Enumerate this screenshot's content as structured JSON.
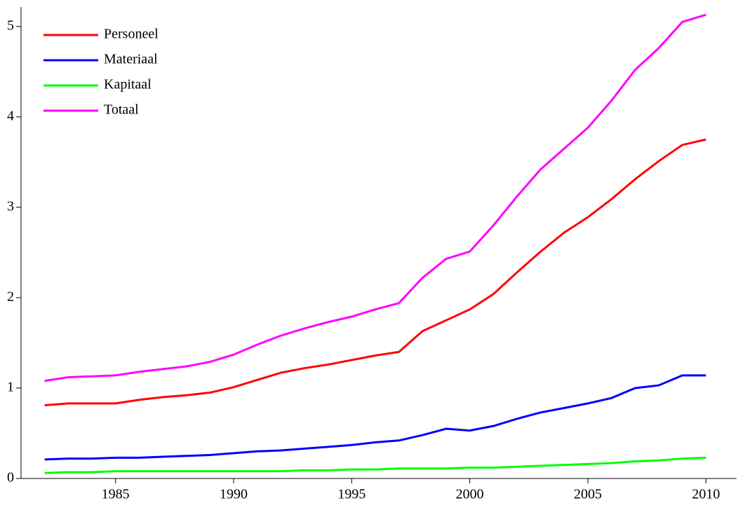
{
  "chart_data": {
    "type": "line",
    "x": [
      1982,
      1983,
      1984,
      1985,
      1986,
      1987,
      1988,
      1989,
      1990,
      1991,
      1992,
      1993,
      1994,
      1995,
      1996,
      1997,
      1998,
      1999,
      2000,
      2001,
      2002,
      2003,
      2004,
      2005,
      2006,
      2007,
      2008,
      2009,
      2010
    ],
    "series": [
      {
        "name": "Personeel",
        "color": "#ff0000",
        "values": [
          0.81,
          0.83,
          0.83,
          0.83,
          0.87,
          0.9,
          0.92,
          0.95,
          1.01,
          1.09,
          1.17,
          1.22,
          1.26,
          1.31,
          1.36,
          1.4,
          1.63,
          1.75,
          1.87,
          2.04,
          2.28,
          2.51,
          2.72,
          2.89,
          3.09,
          3.31,
          3.51,
          3.69,
          3.75
        ]
      },
      {
        "name": "Materiaal",
        "color": "#0000ff",
        "values": [
          0.21,
          0.22,
          0.22,
          0.23,
          0.23,
          0.24,
          0.25,
          0.26,
          0.28,
          0.3,
          0.31,
          0.33,
          0.35,
          0.37,
          0.4,
          0.42,
          0.48,
          0.55,
          0.53,
          0.58,
          0.66,
          0.73,
          0.78,
          0.83,
          0.89,
          1.0,
          1.03,
          1.14,
          1.14
        ]
      },
      {
        "name": "Kapitaal",
        "color": "#00ff00",
        "values": [
          0.06,
          0.07,
          0.07,
          0.08,
          0.08,
          0.08,
          0.08,
          0.08,
          0.08,
          0.08,
          0.08,
          0.09,
          0.09,
          0.1,
          0.1,
          0.11,
          0.11,
          0.11,
          0.12,
          0.12,
          0.13,
          0.14,
          0.15,
          0.16,
          0.17,
          0.19,
          0.2,
          0.22,
          0.23
        ]
      },
      {
        "name": "Totaal",
        "color": "#ff00ff",
        "values": [
          1.08,
          1.12,
          1.13,
          1.14,
          1.18,
          1.21,
          1.24,
          1.29,
          1.37,
          1.48,
          1.58,
          1.66,
          1.73,
          1.79,
          1.87,
          1.94,
          2.22,
          2.43,
          2.51,
          2.8,
          3.12,
          3.42,
          3.65,
          3.88,
          4.18,
          4.52,
          4.76,
          5.05,
          5.13
        ]
      }
    ],
    "xlim": [
      1981,
      2011
    ],
    "xticks": [
      1985,
      1990,
      1995,
      2000,
      2005,
      2010
    ],
    "ylim": [
      0,
      5.2
    ],
    "yticks": [
      0,
      1,
      2,
      3,
      4,
      5
    ],
    "legend": "top-left"
  }
}
